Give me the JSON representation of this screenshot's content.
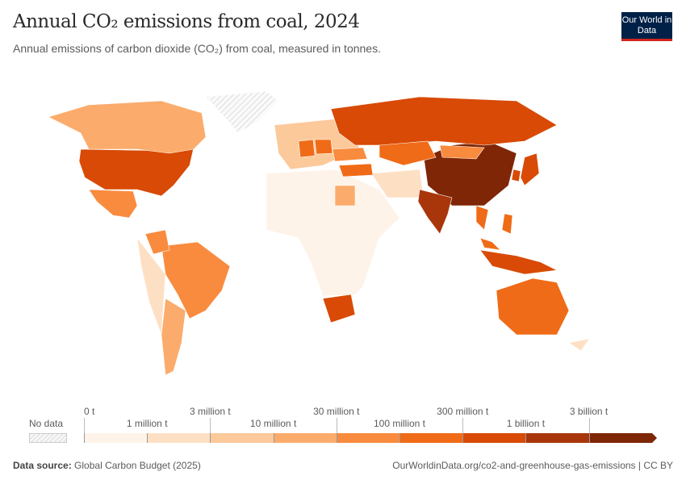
{
  "header": {
    "title": "Annual CO₂ emissions from coal, 2024",
    "subtitle": "Annual emissions of carbon dioxide (CO₂) from coal, measured in tonnes.",
    "logo": "Our World in Data"
  },
  "legend": {
    "no_data_label": "No data",
    "top_labels": [
      "0 t",
      "3 million t",
      "30 million t",
      "300 million t",
      "3 billion t"
    ],
    "bottom_labels": [
      "1 million t",
      "10 million t",
      "100 million t",
      "1 billion t"
    ],
    "colors": [
      "#fef3e8",
      "#fde0c4",
      "#fcc99b",
      "#fbab6c",
      "#f98b3e",
      "#f06b17",
      "#d84a05",
      "#a9360b",
      "#7f2606"
    ]
  },
  "chart_data": {
    "type": "choropleth",
    "title": "Annual CO₂ emissions from coal, 2024",
    "unit": "tonnes",
    "bins": [
      "0 t",
      "1 million t",
      "3 million t",
      "10 million t",
      "30 million t",
      "100 million t",
      "300 million t",
      "1 billion t",
      "3 billion t"
    ],
    "countries": [
      {
        "name": "China",
        "bin": 8
      },
      {
        "name": "India",
        "bin": 7
      },
      {
        "name": "United States",
        "bin": 6
      },
      {
        "name": "Russia",
        "bin": 6
      },
      {
        "name": "Indonesia",
        "bin": 6
      },
      {
        "name": "South Africa",
        "bin": 6
      },
      {
        "name": "Japan",
        "bin": 6
      },
      {
        "name": "Australia",
        "bin": 5
      },
      {
        "name": "Vietnam",
        "bin": 5
      },
      {
        "name": "Kazakhstan",
        "bin": 5
      },
      {
        "name": "Turkey",
        "bin": 5
      },
      {
        "name": "Poland",
        "bin": 5
      },
      {
        "name": "Germany",
        "bin": 5
      },
      {
        "name": "South Korea",
        "bin": 6
      },
      {
        "name": "Brazil",
        "bin": 4
      },
      {
        "name": "Mexico",
        "bin": 4
      },
      {
        "name": "Canada",
        "bin": 3
      },
      {
        "name": "Ukraine",
        "bin": 4
      },
      {
        "name": "Mongolia",
        "bin": 4
      },
      {
        "name": "Philippines",
        "bin": 5
      },
      {
        "name": "Malaysia",
        "bin": 5
      },
      {
        "name": "Egypt",
        "bin": 3
      },
      {
        "name": "Argentina",
        "bin": 3
      },
      {
        "name": "Colombia",
        "bin": 4
      },
      {
        "name": "Greenland",
        "bin": null
      }
    ]
  },
  "footer": {
    "source_label": "Data source:",
    "source": "Global Carbon Budget (2025)",
    "url": "OurWorldinData.org/co2-and-greenhouse-gas-emissions | CC BY"
  }
}
